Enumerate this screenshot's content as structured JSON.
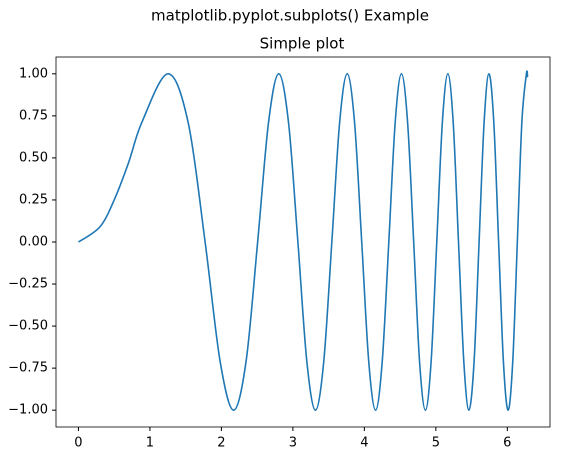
{
  "chart_data": {
    "type": "line",
    "suptitle": "matplotlib.pyplot.subplots() Example",
    "title": "Simple plot",
    "x": [
      0,
      0.3,
      0.5,
      0.7,
      0.886,
      1.253,
      1.535,
      1.772,
      1.982,
      2.171,
      2.345,
      2.507,
      2.659,
      2.802,
      2.939,
      3.07,
      3.195,
      3.316,
      3.432,
      3.545,
      3.654,
      3.76,
      3.863,
      3.963,
      4.061,
      4.157,
      4.25,
      4.342,
      4.431,
      4.519,
      4.605,
      4.69,
      4.772,
      4.854,
      4.934,
      5.013,
      5.091,
      5.168,
      5.243,
      5.317,
      5.391,
      5.463,
      5.535,
      5.605,
      5.675,
      5.743,
      5.811,
      5.878,
      5.945,
      6.011,
      6.076,
      6.14,
      6.203,
      6.267,
      6.283
    ],
    "series": [
      {
        "color": "#1f77b4",
        "values": [
          0,
          0.09,
          0.25,
          0.47,
          0.71,
          1,
          0.71,
          0,
          -0.71,
          -1,
          -0.71,
          0,
          0.71,
          1,
          0.71,
          0,
          -0.71,
          -1,
          -0.71,
          0,
          0.71,
          1,
          0.71,
          0,
          -0.71,
          -1,
          -0.71,
          0,
          0.71,
          1,
          0.71,
          0,
          -0.71,
          -1,
          -0.71,
          0,
          0.71,
          1,
          0.71,
          0,
          -0.71,
          -1,
          -0.71,
          0,
          0.71,
          1,
          0.71,
          0,
          -0.71,
          -1,
          -0.71,
          0,
          0.71,
          1,
          0.98
        ]
      }
    ],
    "xlim": [
      -0.314,
      6.597
    ],
    "ylim": [
      -1.1,
      1.1
    ],
    "xticks": [
      0,
      1,
      2,
      3,
      4,
      5,
      6
    ],
    "yticks": [
      {
        "value": -1,
        "label": "−1.00"
      },
      {
        "value": -0.75,
        "label": "−0.75"
      },
      {
        "value": -0.5,
        "label": "−0.50"
      },
      {
        "value": -0.25,
        "label": "−0.25"
      },
      {
        "value": 0,
        "label": "0.00"
      },
      {
        "value": 0.25,
        "label": "0.25"
      },
      {
        "value": 0.5,
        "label": "0.50"
      },
      {
        "value": 0.75,
        "label": "0.75"
      },
      {
        "value": 1,
        "label": "1.00"
      }
    ]
  }
}
